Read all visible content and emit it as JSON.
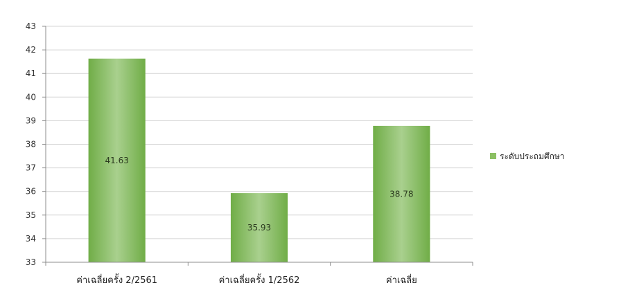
{
  "chart_data": {
    "type": "bar",
    "title": "",
    "xlabel": "",
    "ylabel": "",
    "categories": [
      "ค่าเฉลี่ยครั้ง 2/2561",
      "ค่าเฉลี่ยครั้ง 1/2562",
      "ค่าเฉลี่ย"
    ],
    "series": [
      {
        "name": "ระดับประถมศึกษา",
        "values": [
          41.63,
          35.93,
          38.78
        ],
        "data_labels": [
          "41.63",
          "35.93",
          "38.78"
        ]
      }
    ],
    "ylim": [
      33,
      43
    ],
    "yticks": [
      33,
      34,
      35,
      36,
      37,
      38,
      39,
      40,
      41,
      42,
      43
    ],
    "grid": true,
    "legend_position": "right",
    "colors": {
      "bar_light": "#a9d08e",
      "bar_dark": "#70ad47",
      "legend_swatch": "#8cc063"
    }
  }
}
